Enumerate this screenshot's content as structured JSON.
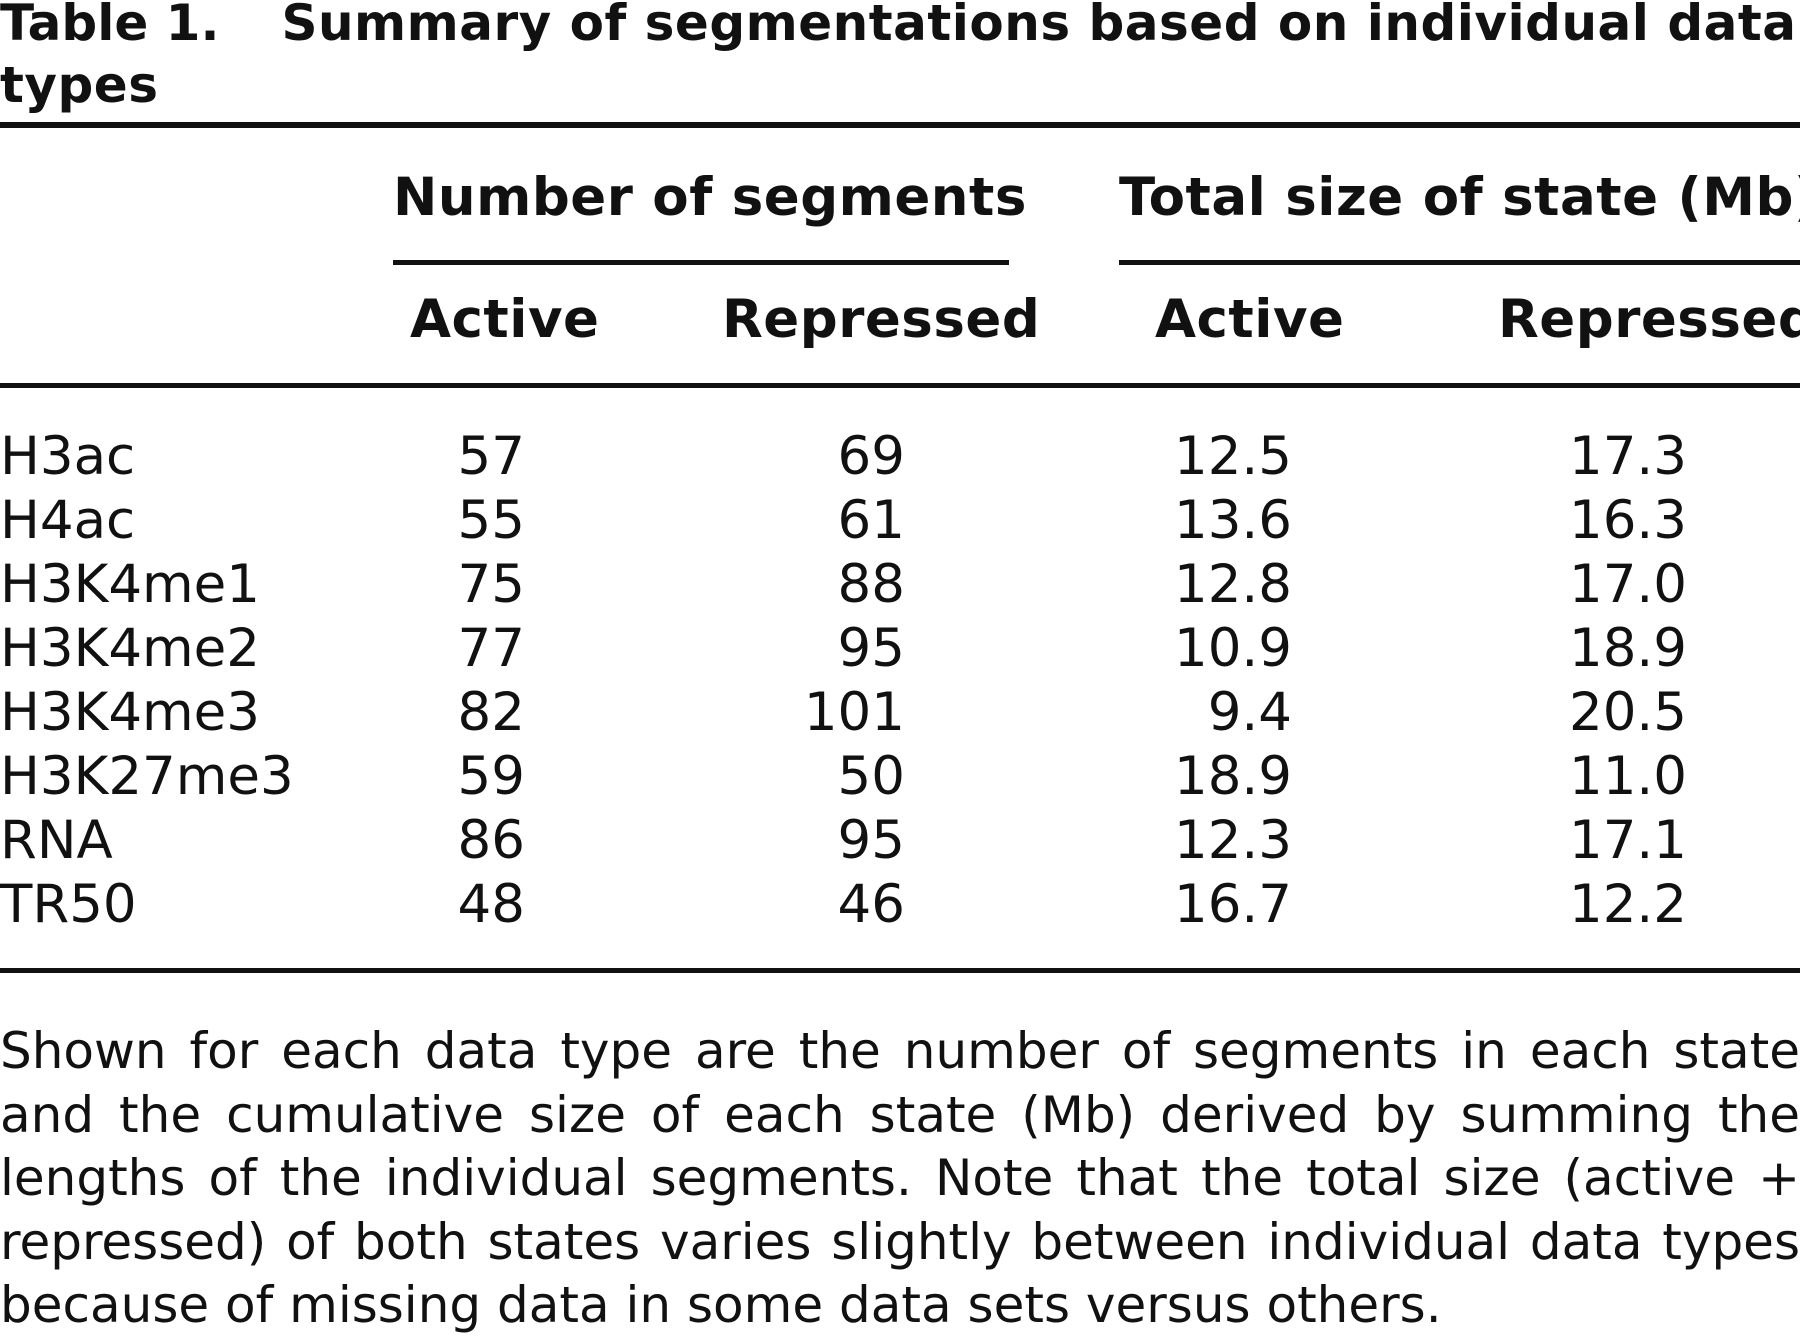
{
  "table": {
    "label": "Table 1.",
    "title": "Summary of segmentations based on individual data types",
    "group_headers": [
      "Number of segments",
      "Total size of state (Mb)"
    ],
    "column_headers": [
      "Active",
      "Repressed",
      "Active",
      "Repressed"
    ],
    "rows": [
      {
        "name": "H3ac",
        "values": [
          "57",
          "69",
          "12.5",
          "17.3"
        ]
      },
      {
        "name": "H4ac",
        "values": [
          "55",
          "61",
          "13.6",
          "16.3"
        ]
      },
      {
        "name": "H3K4me1",
        "values": [
          "75",
          "88",
          "12.8",
          "17.0"
        ]
      },
      {
        "name": "H3K4me2",
        "values": [
          "77",
          "95",
          "10.9",
          "18.9"
        ]
      },
      {
        "name": "H3K4me3",
        "values": [
          "82",
          "101",
          "9.4",
          "20.5"
        ]
      },
      {
        "name": "H3K27me3",
        "values": [
          "59",
          "50",
          "18.9",
          "11.0"
        ]
      },
      {
        "name": "RNA",
        "values": [
          "86",
          "95",
          "12.3",
          "17.1"
        ]
      },
      {
        "name": "TR50",
        "values": [
          "48",
          "46",
          "16.7",
          "12.2"
        ]
      }
    ],
    "footnote": "Shown for each data type are the number of segments in each state and the cumulative size of each state (Mb) derived by summing the lengths of the individual segments. Note that the total size (active + repressed) of both states varies slightly between individual data types because of missing data in some data sets versus others."
  }
}
